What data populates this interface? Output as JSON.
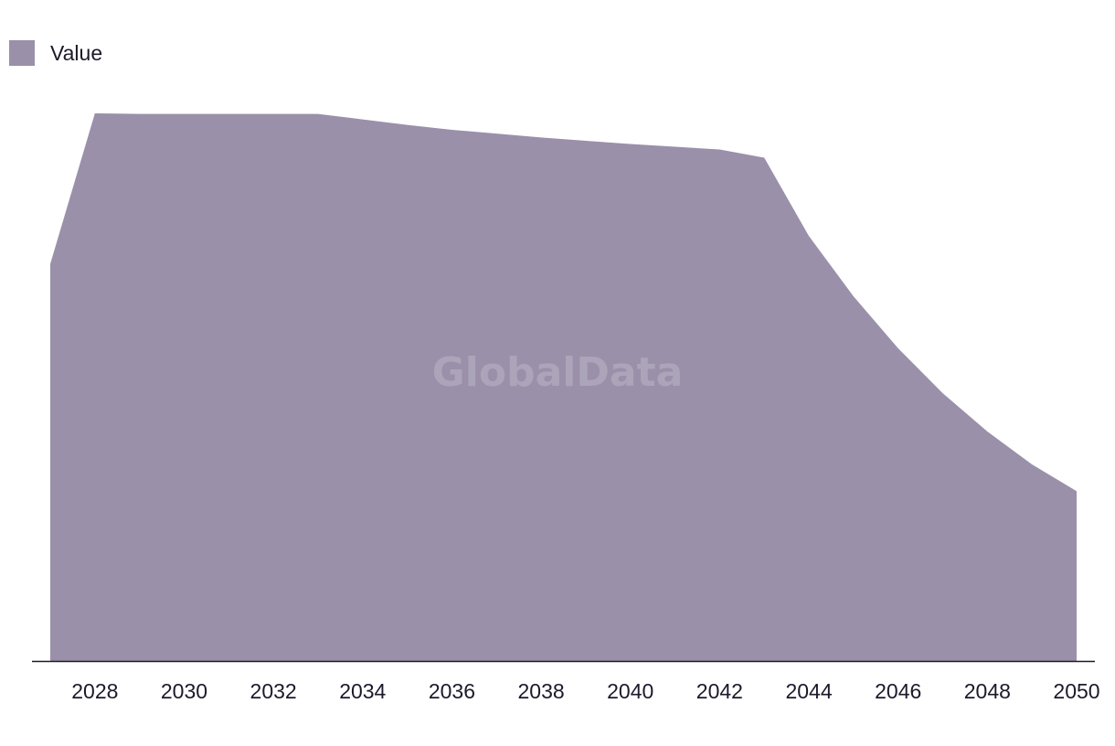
{
  "legend": {
    "label": "Value"
  },
  "watermark": "GlobalData",
  "colors": {
    "area": "#9a90aa",
    "axis": "#1c1a2b",
    "text": "#1c1a2b"
  },
  "chart_data": {
    "type": "area",
    "x": [
      2027,
      2028,
      2029,
      2030,
      2031,
      2032,
      2033,
      2034,
      2035,
      2036,
      2037,
      2038,
      2039,
      2040,
      2041,
      2042,
      2043,
      2044,
      2045,
      2046,
      2047,
      2048,
      2049,
      2050
    ],
    "series": [
      {
        "name": "Value",
        "values": [
          72.5,
          100,
          99.9,
          99.9,
          99.9,
          99.9,
          99.9,
          98.9,
          97.9,
          97.0,
          96.3,
          95.6,
          95.0,
          94.4,
          93.9,
          93.4,
          91.9,
          77.6,
          66.6,
          57.1,
          48.9,
          41.9,
          35.9,
          31.0
        ]
      }
    ],
    "xticks": [
      "2028",
      "2030",
      "2032",
      "2034",
      "2036",
      "2038",
      "2040",
      "2042",
      "2044",
      "2046",
      "2048",
      "2050"
    ],
    "ylim": [
      0,
      100
    ],
    "legend_position": "top-left",
    "grid": false
  }
}
